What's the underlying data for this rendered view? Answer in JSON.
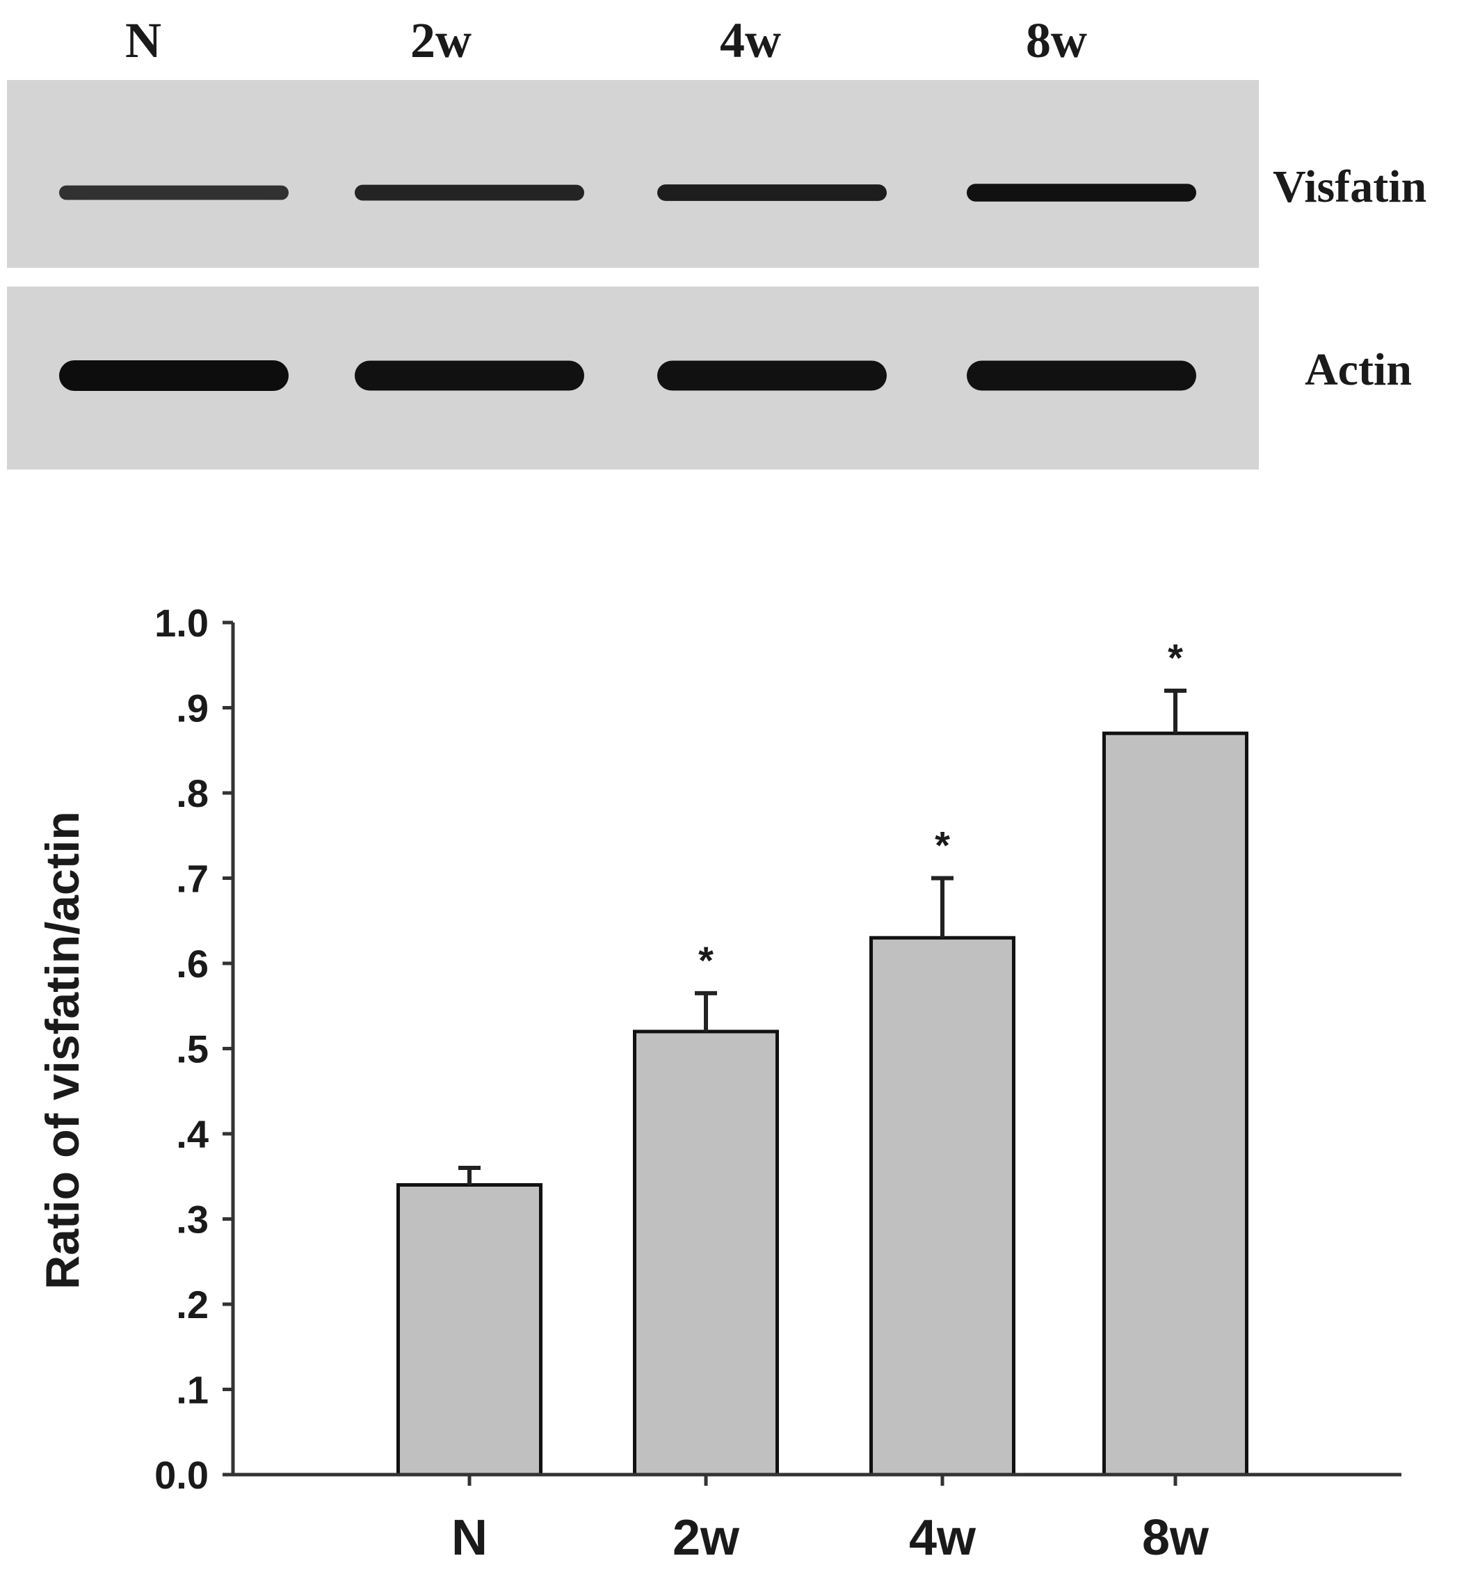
{
  "blot": {
    "lanes": [
      "N",
      "2w",
      "4w",
      "8w"
    ],
    "rows": [
      {
        "label": "Visfatin",
        "band_intensity": [
          0.55,
          0.72,
          0.8,
          0.95
        ]
      },
      {
        "label": "Actin",
        "band_intensity": [
          1.0,
          0.95,
          0.95,
          0.95
        ]
      }
    ]
  },
  "chart_data": {
    "type": "bar",
    "categories": [
      "N",
      "2w",
      "4w",
      "8w"
    ],
    "values": [
      0.34,
      0.52,
      0.63,
      0.87
    ],
    "errors": [
      0.02,
      0.045,
      0.07,
      0.05
    ],
    "significance": [
      "",
      "*",
      "*",
      "*"
    ],
    "ylabel": "Ratio of visfatin/actin",
    "ylim": [
      0,
      1.0
    ],
    "yticks": [
      "0.0",
      ".1",
      ".2",
      ".3",
      ".4",
      ".5",
      ".6",
      ".7",
      ".8",
      ".9",
      "1.0"
    ],
    "grid": false,
    "colors": {
      "bar": "#c0c0c0",
      "bar_edge": "#111111",
      "axis": "#333333"
    }
  }
}
